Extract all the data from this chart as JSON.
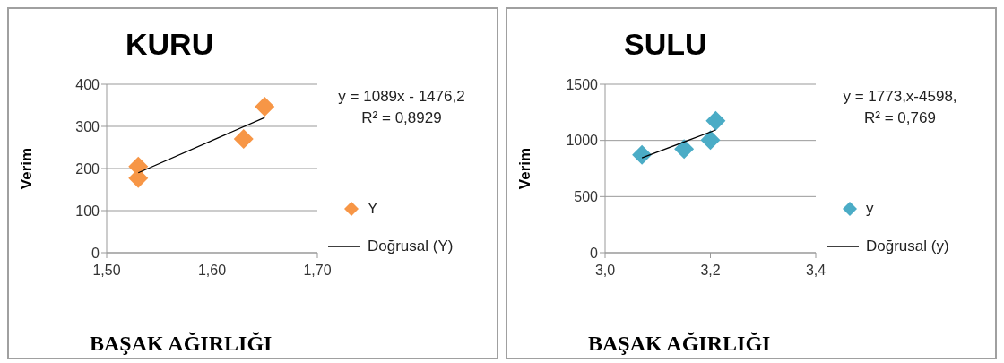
{
  "chart_data": [
    {
      "type": "scatter",
      "title": "KURU",
      "xlabel": "BAŞAK AĞIRLIĞI",
      "ylabel": "Verim",
      "annotations": [
        "y = 1089x - 1476,2",
        "R² = 0,8929"
      ],
      "xlim": [
        1.5,
        1.7
      ],
      "xticks": [
        {
          "value": 1.5,
          "label": "1,50"
        },
        {
          "value": 1.6,
          "label": "1,60"
        },
        {
          "value": 1.7,
          "label": "1,70"
        }
      ],
      "ylim": [
        0,
        400
      ],
      "yticks": [
        0,
        100,
        200,
        300,
        400
      ],
      "grid": "y",
      "legend": "right",
      "series": [
        {
          "marker": "diamond",
          "name": "Y",
          "color": "#f79646",
          "x": [
            1.53,
            1.53,
            1.63,
            1.65
          ],
          "values": [
            205,
            177,
            270,
            347
          ]
        },
        {
          "name": "Doğrusal (Y)",
          "type": "line",
          "color": "#000000",
          "x": [
            1.53,
            1.65
          ],
          "values": [
            190,
            321
          ]
        }
      ]
    },
    {
      "type": "scatter",
      "title": "SULU",
      "xlabel": "BAŞAK AĞIRLIĞI",
      "ylabel": "Verim",
      "annotations": [
        "y = 1773,x-4598,",
        "R² = 0,769"
      ],
      "xlim": [
        3.0,
        3.4
      ],
      "xticks": [
        {
          "value": 3.0,
          "label": "3,0"
        },
        {
          "value": 3.2,
          "label": "3,2"
        },
        {
          "value": 3.4,
          "label": "3,4"
        }
      ],
      "ylim": [
        0,
        1500
      ],
      "yticks": [
        0,
        500,
        1000,
        1500
      ],
      "grid": "y",
      "legend": "right",
      "series": [
        {
          "marker": "diamond",
          "name": "y",
          "color": "#4bacc6",
          "x": [
            3.07,
            3.15,
            3.2,
            3.21
          ],
          "values": [
            871,
            923,
            1004,
            1174
          ]
        },
        {
          "name": "Doğrusal (y)",
          "type": "line",
          "color": "#000000",
          "x": [
            3.07,
            3.21
          ],
          "values": [
            845,
            1093
          ]
        }
      ]
    }
  ]
}
